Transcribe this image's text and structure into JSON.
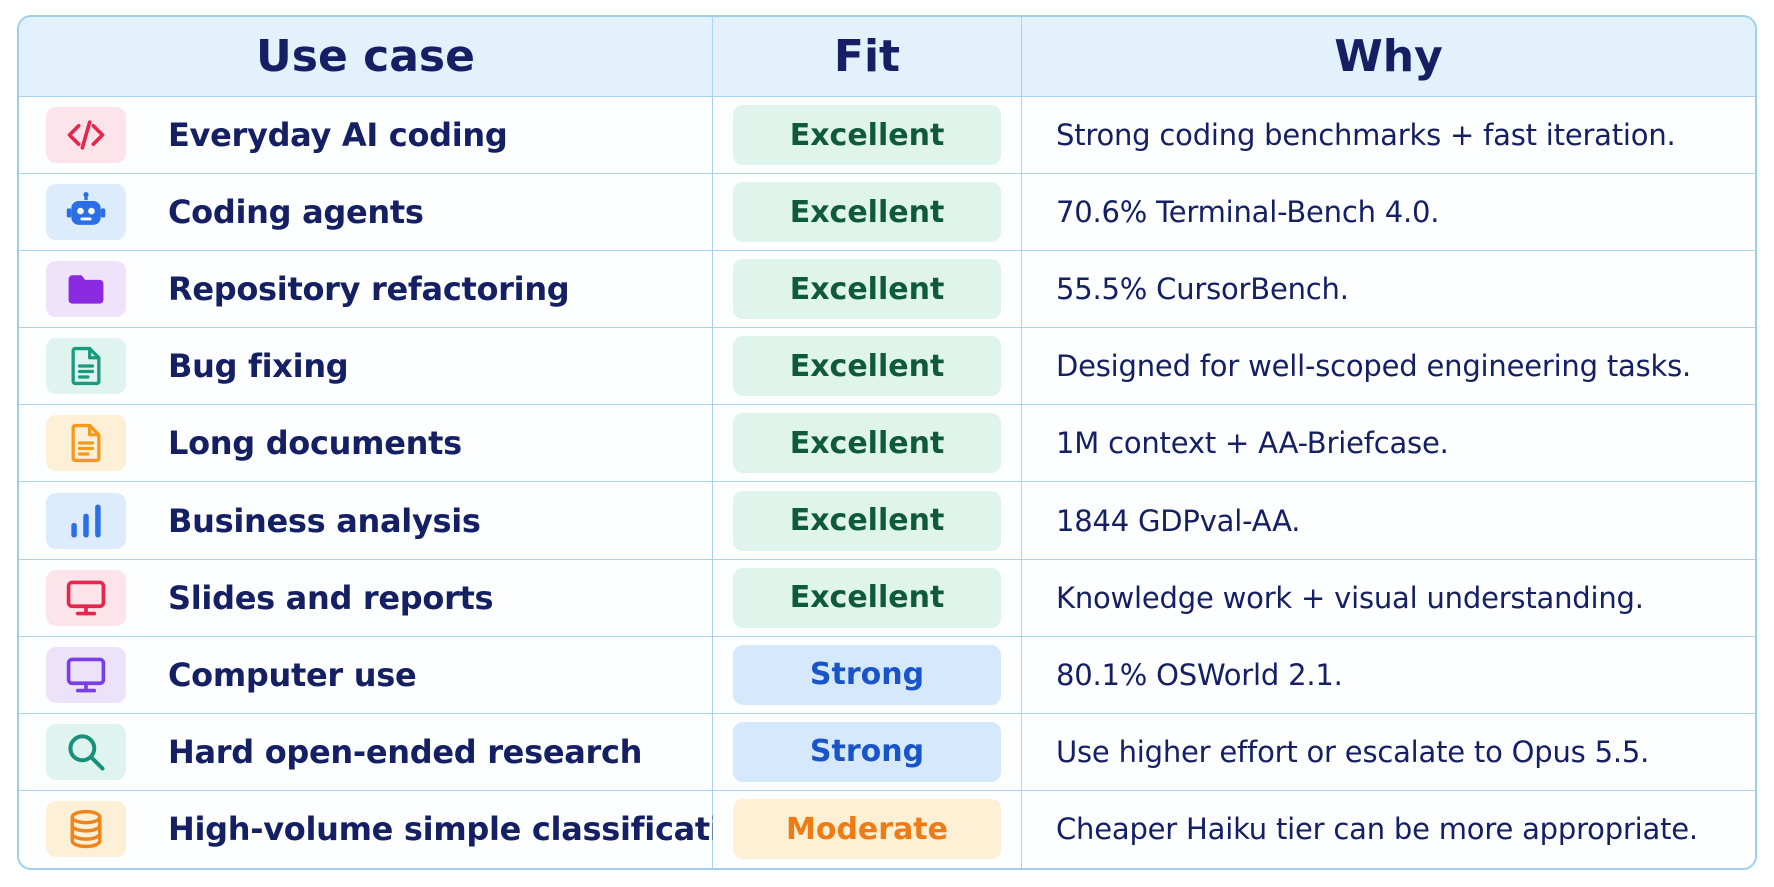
{
  "header": {
    "col_usecase": "Use case",
    "col_fit": "Fit",
    "col_why": "Why"
  },
  "rows": [
    {
      "icon": "code-icon",
      "icon_bg": "#fde4ea",
      "icon_color": "#e5274d",
      "label": "Everyday AI coding",
      "fit": "Excellent",
      "fit_level": "excellent",
      "why": "Strong coding benchmarks + fast iteration."
    },
    {
      "icon": "robot-icon",
      "icon_bg": "#dcecfd",
      "icon_color": "#2a6fe6",
      "label": "Coding agents",
      "fit": "Excellent",
      "fit_level": "excellent",
      "why": "70.6% Terminal-Bench 4.0."
    },
    {
      "icon": "folder-icon",
      "icon_bg": "#efe2fb",
      "icon_color": "#8a2be2",
      "label": "Repository refactoring",
      "fit": "Excellent",
      "fit_level": "excellent",
      "why": "55.5% CursorBench."
    },
    {
      "icon": "document-icon",
      "icon_bg": "#dff4ee",
      "icon_color": "#1a9a7f",
      "label": "Bug fixing",
      "fit": "Excellent",
      "fit_level": "excellent",
      "why": "Designed for well-scoped engineering tasks."
    },
    {
      "icon": "document-icon",
      "icon_bg": "#fdf0d6",
      "icon_color": "#f29a1c",
      "label": "Long documents",
      "fit": "Excellent",
      "fit_level": "excellent",
      "why": "1M context + AA-Briefcase."
    },
    {
      "icon": "bar-chart-icon",
      "icon_bg": "#dcecfd",
      "icon_color": "#2a6fe6",
      "label": "Business analysis",
      "fit": "Excellent",
      "fit_level": "excellent",
      "why": "1844 GDPval-AA."
    },
    {
      "icon": "monitor-icon",
      "icon_bg": "#fde4ea",
      "icon_color": "#e5274d",
      "label": "Slides and reports",
      "fit": "Excellent",
      "fit_level": "excellent",
      "why": "Knowledge work + visual understanding."
    },
    {
      "icon": "monitor-icon",
      "icon_bg": "#ece3fb",
      "icon_color": "#7a3ee6",
      "label": "Computer use",
      "fit": "Strong",
      "fit_level": "strong",
      "why": "80.1% OSWorld 2.1."
    },
    {
      "icon": "search-icon",
      "icon_bg": "#dff4ee",
      "icon_color": "#18907a",
      "label": "Hard open-ended research",
      "fit": "Strong",
      "fit_level": "strong",
      "why": "Use higher effort or escalate to Opus 5.5."
    },
    {
      "icon": "database-icon",
      "icon_bg": "#fdf0d6",
      "icon_color": "#f0841c",
      "label": "High-volume simple classification",
      "fit": "Moderate",
      "fit_level": "moderate",
      "why": "Cheaper Haiku tier can be more appropriate."
    }
  ]
}
